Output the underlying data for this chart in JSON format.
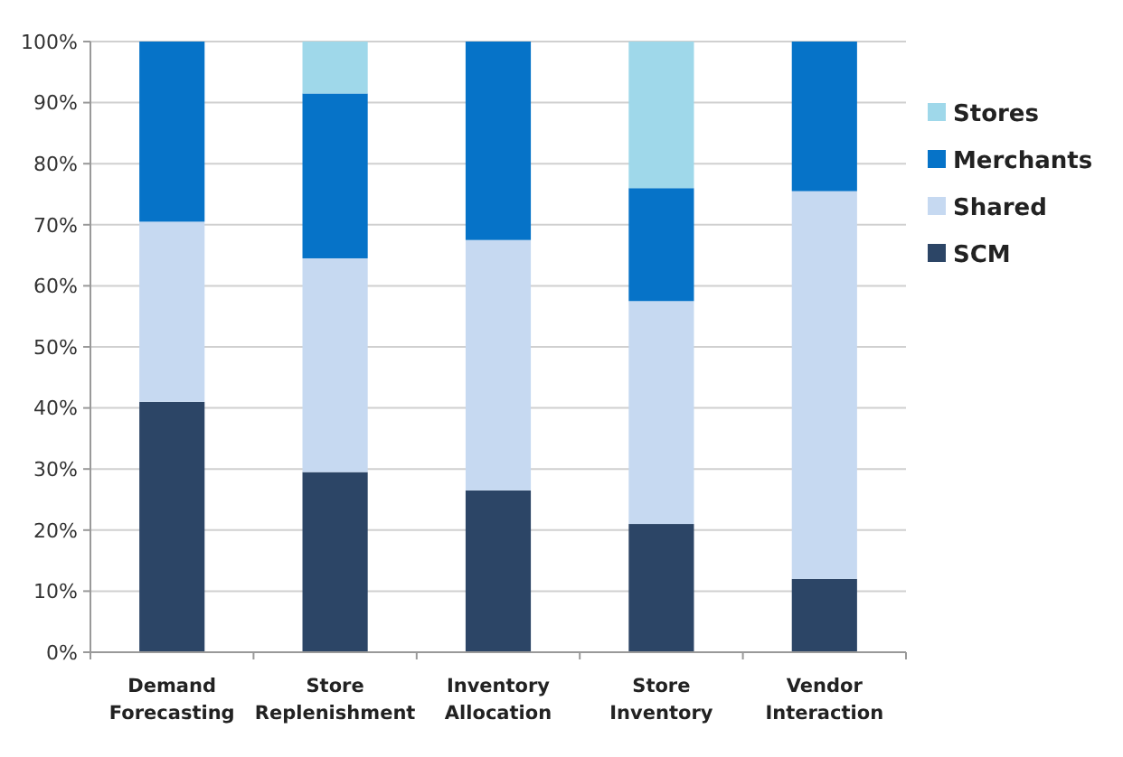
{
  "chart_data": {
    "type": "bar",
    "stacked": true,
    "categories": [
      "Demand Forecasting",
      "Store Replenishment",
      "Inventory Allocation",
      "Store Inventory",
      "Vendor Interaction"
    ],
    "series": [
      {
        "name": "SCM",
        "color": "#2c4566",
        "values": [
          41,
          29.5,
          26.5,
          21,
          12
        ]
      },
      {
        "name": "Shared",
        "color": "#c6d9f1",
        "values": [
          29.5,
          35,
          41,
          36.5,
          63.5
        ]
      },
      {
        "name": "Merchants",
        "color": "#0673c8",
        "values": [
          29.5,
          27,
          32.5,
          18.5,
          24.5
        ]
      },
      {
        "name": "Stores",
        "color": "#9fd8ea",
        "values": [
          0,
          8.5,
          0,
          24,
          0
        ]
      }
    ],
    "ylim": [
      0,
      100
    ],
    "yticks": [
      {
        "value": 0,
        "label": "0%"
      },
      {
        "value": 10,
        "label": "10%"
      },
      {
        "value": 20,
        "label": "20%"
      },
      {
        "value": 30,
        "label": "30%"
      },
      {
        "value": 40,
        "label": "40%"
      },
      {
        "value": 50,
        "label": "50%"
      },
      {
        "value": 60,
        "label": "60%"
      },
      {
        "value": 70,
        "label": "70%"
      },
      {
        "value": 80,
        "label": "80%"
      },
      {
        "value": 90,
        "label": "90%"
      },
      {
        "value": 100,
        "label": "100%"
      }
    ],
    "grid": "y",
    "legend": "right"
  }
}
